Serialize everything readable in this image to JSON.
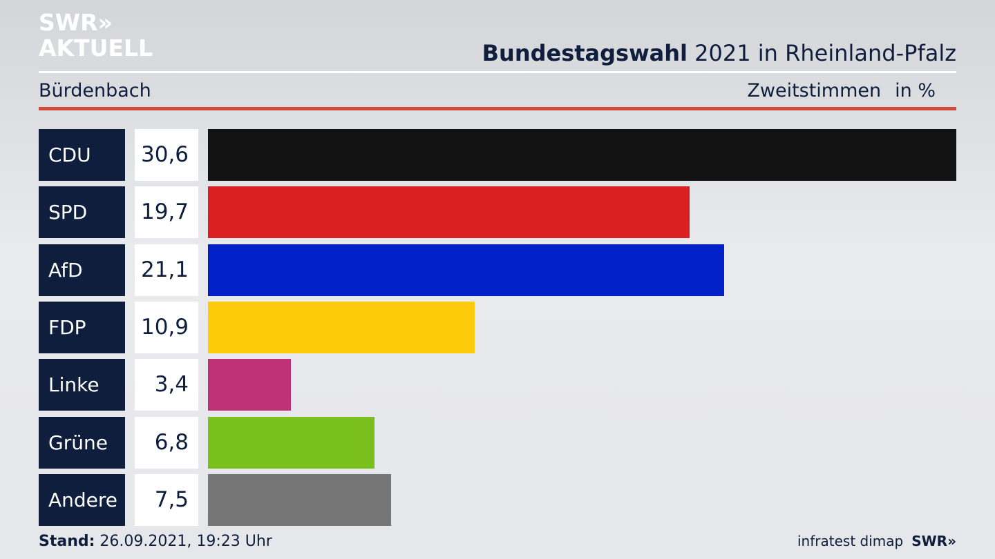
{
  "brand": {
    "line1": "SWR»",
    "line2": "AKTUELL"
  },
  "header": {
    "title_bold": "Bundestagswahl",
    "title_rest": " 2021 in Rheinland-Pfalz",
    "location": "Bürdenbach",
    "metric": "Zweitstimmen",
    "unit": "in %"
  },
  "chart_data": {
    "type": "bar",
    "orientation": "horizontal",
    "categories": [
      "CDU",
      "SPD",
      "AfD",
      "FDP",
      "Linke",
      "Grüne",
      "Andere"
    ],
    "values": [
      30.6,
      19.7,
      21.1,
      10.9,
      3.4,
      6.8,
      7.5
    ],
    "value_labels": [
      "30,6",
      "19,7",
      "21,1",
      "10,9",
      "3,4",
      "6,8",
      "7,5"
    ],
    "colors": [
      "#121212",
      "#d91f1f",
      "#0021c8",
      "#fecb0a",
      "#bf3176",
      "#7ac01c",
      "#757576"
    ],
    "xlim": [
      0,
      30.6
    ],
    "grid": false
  },
  "footer": {
    "stand_label": "Stand:",
    "stand_value": " 26.09.2021, 19:23 Uhr",
    "source": "infratest dimap",
    "source_brand": "SWR»"
  }
}
